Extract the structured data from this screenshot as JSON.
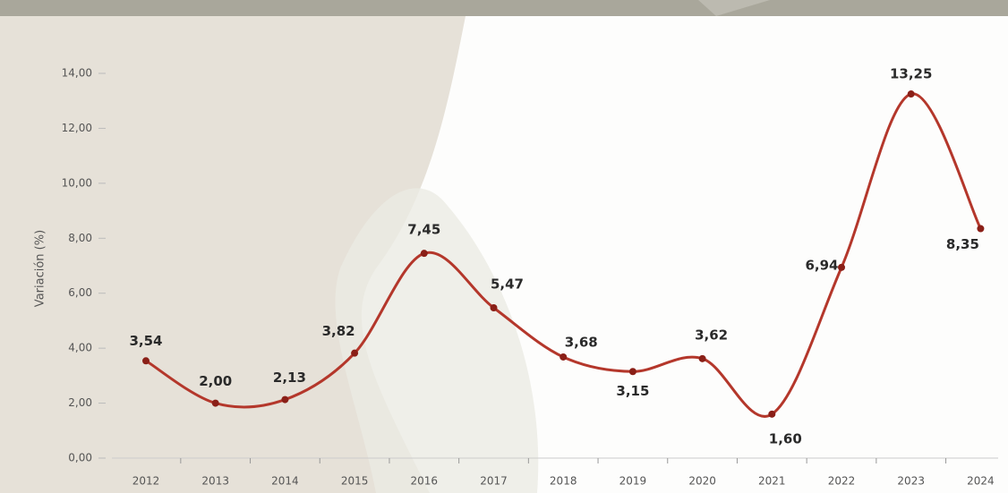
{
  "chart_data": {
    "type": "line",
    "y_label": "Variación (%)",
    "categories": [
      "2012",
      "2013",
      "2014",
      "2015",
      "2016",
      "2017",
      "2018",
      "2019",
      "2020",
      "2021",
      "2022",
      "2023",
      "2024"
    ],
    "values": [
      3.54,
      2.0,
      2.13,
      3.82,
      7.45,
      5.47,
      3.68,
      3.15,
      3.62,
      1.6,
      6.94,
      13.25,
      8.35
    ],
    "value_labels": [
      "3,54",
      "2,00",
      "2,13",
      "3,82",
      "7,45",
      "5,47",
      "3,68",
      "3,15",
      "3,62",
      "1,60",
      "6,94",
      "13,25",
      "8,35"
    ],
    "color": "#b4372b",
    "ylim": [
      0,
      14
    ],
    "yticks": [
      {
        "value": 0,
        "label": "0,00"
      },
      {
        "value": 2,
        "label": "2,00"
      },
      {
        "value": 4,
        "label": "4,00"
      },
      {
        "value": 6,
        "label": "6,00"
      },
      {
        "value": 8,
        "label": "8,00"
      },
      {
        "value": 10,
        "label": "10,00"
      },
      {
        "value": 12,
        "label": "12,00"
      },
      {
        "value": 14,
        "label": "14,00"
      }
    ],
    "smooth": true
  }
}
